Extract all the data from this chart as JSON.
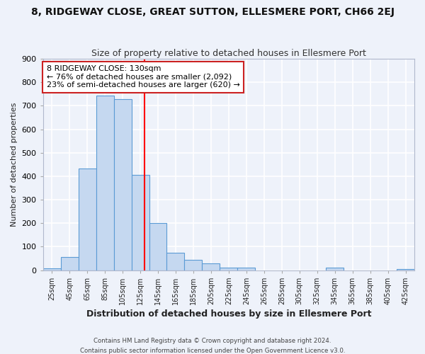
{
  "title": "8, RIDGEWAY CLOSE, GREAT SUTTON, ELLESMERE PORT, CH66 2EJ",
  "subtitle": "Size of property relative to detached houses in Ellesmere Port",
  "xlabel": "Distribution of detached houses by size in Ellesmere Port",
  "ylabel": "Number of detached properties",
  "bin_edges": [
    15,
    35,
    55,
    75,
    95,
    115,
    135,
    155,
    175,
    195,
    215,
    235,
    255,
    275,
    295,
    315,
    335,
    355,
    375,
    395,
    415,
    435
  ],
  "bin_heights": [
    8,
    57,
    432,
    745,
    730,
    405,
    200,
    75,
    45,
    28,
    12,
    12,
    0,
    0,
    0,
    0,
    12,
    0,
    0,
    0,
    5
  ],
  "tick_labels": [
    "25sqm",
    "45sqm",
    "65sqm",
    "85sqm",
    "105sqm",
    "125sqm",
    "145sqm",
    "165sqm",
    "185sqm",
    "205sqm",
    "225sqm",
    "245sqm",
    "265sqm",
    "285sqm",
    "305sqm",
    "325sqm",
    "345sqm",
    "365sqm",
    "385sqm",
    "405sqm",
    "425sqm"
  ],
  "tick_positions": [
    25,
    45,
    65,
    85,
    105,
    125,
    145,
    165,
    185,
    205,
    225,
    245,
    265,
    285,
    305,
    325,
    345,
    365,
    385,
    405,
    425
  ],
  "bar_color": "#c5d8f0",
  "bar_edge_color": "#5b9bd5",
  "vline_x": 130,
  "vline_color": "red",
  "ylim": [
    0,
    900
  ],
  "xlim": [
    15,
    435
  ],
  "annotation_text_line1": "8 RIDGEWAY CLOSE: 130sqm",
  "annotation_text_line2": "← 76% of detached houses are smaller (2,092)",
  "annotation_text_line3": "23% of semi-detached houses are larger (620) →",
  "footer_line1": "Contains HM Land Registry data © Crown copyright and database right 2024.",
  "footer_line2": "Contains public sector information licensed under the Open Government Licence v3.0.",
  "bg_color": "#eef2fa",
  "grid_color": "#ffffff",
  "title_fontsize": 10,
  "subtitle_fontsize": 9,
  "ylabel_fontsize": 8,
  "xlabel_fontsize": 9
}
